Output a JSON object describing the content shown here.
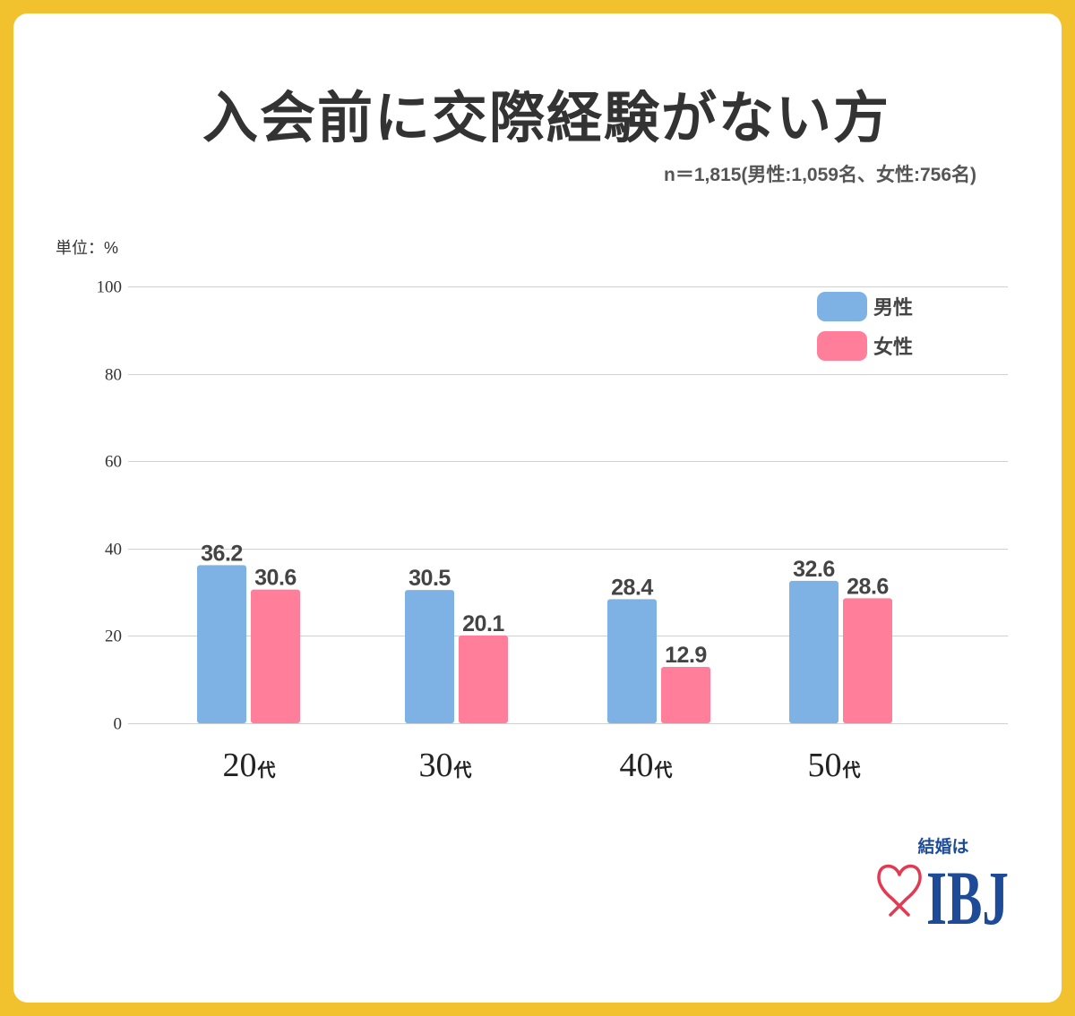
{
  "colors": {
    "page_border": "#F2C12E",
    "card": "#FFFFFF",
    "gridline": "#D0D0D0",
    "logo_blue": "#1D4B97",
    "logo_heart": "#E23A52"
  },
  "chart_data": {
    "type": "bar",
    "title": "入会前に交際経験がない方",
    "subtitle": "n＝1,815(男性:1,059名、女性:756名)",
    "xlabel": "",
    "ylabel": "単位：%",
    "categories": [
      "20代",
      "30代",
      "40代",
      "50代"
    ],
    "series": [
      {
        "name": "男性",
        "color": "#7EB2E4",
        "values": [
          36.2,
          30.5,
          28.4,
          32.6
        ]
      },
      {
        "name": "女性",
        "color": "#FF7E9A",
        "values": [
          30.6,
          20.1,
          12.9,
          28.6
        ]
      }
    ],
    "ylim": [
      0,
      100
    ],
    "yticks": [
      0,
      20,
      40,
      60,
      80,
      100
    ],
    "grid": true,
    "legend": "top-right",
    "data_labels": true
  },
  "logo": {
    "tagline": "結婚は",
    "brand": "IBJ",
    "icon": "heart-outline-icon"
  }
}
